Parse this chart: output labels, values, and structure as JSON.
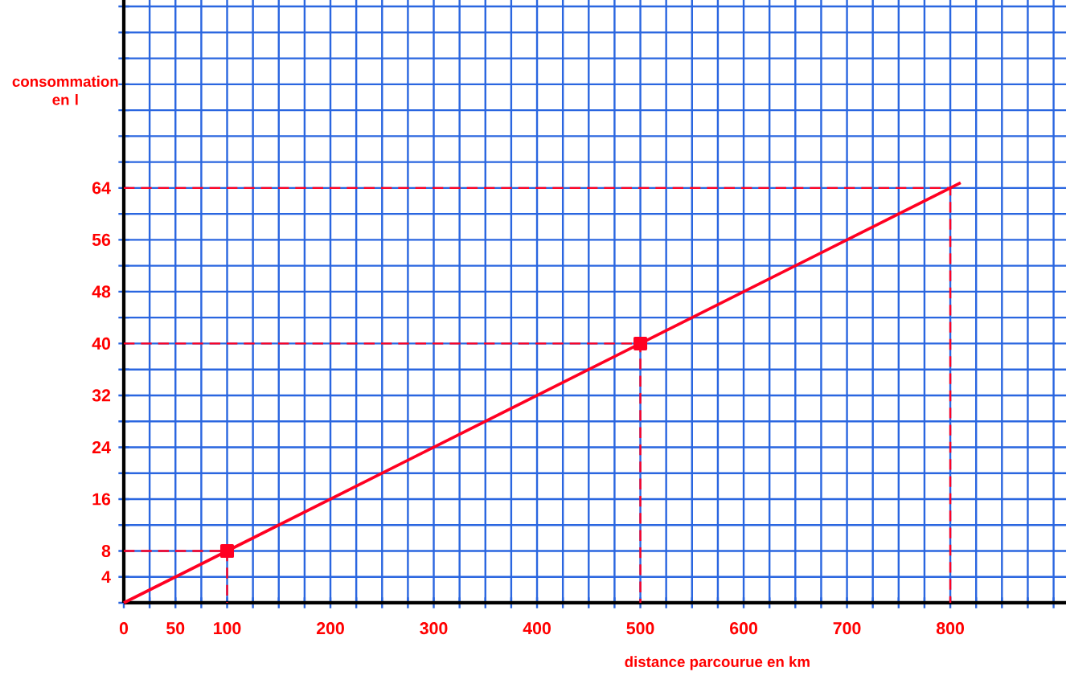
{
  "chart_data": {
    "type": "line",
    "xlabel": "distance parcourue en km",
    "ylabel": "consommation en l",
    "xlim": [
      0,
      912
    ],
    "ylim": [
      0,
      93
    ],
    "xticks": [
      0,
      50,
      100,
      {
        "value": 25,
        "label": null
      },
      {
        "value": 75,
        "label": null
      },
      {
        "value": 125,
        "label": null
      },
      {
        "value": 150,
        "label": null
      },
      {
        "value": 175,
        "label": null
      },
      200,
      {
        "value": 225,
        "label": null
      },
      {
        "value": 250,
        "label": null
      },
      {
        "value": 275,
        "label": null
      },
      300,
      {
        "value": 325,
        "label": null
      },
      {
        "value": 350,
        "label": null
      },
      {
        "value": 375,
        "label": null
      },
      400,
      {
        "value": 425,
        "label": null
      },
      {
        "value": 450,
        "label": null
      },
      {
        "value": 475,
        "label": null
      },
      500,
      {
        "value": 525,
        "label": null
      },
      {
        "value": 550,
        "label": null
      },
      {
        "value": 575,
        "label": null
      },
      600,
      {
        "value": 625,
        "label": null
      },
      {
        "value": 650,
        "label": null
      },
      {
        "value": 675,
        "label": null
      },
      700,
      {
        "value": 725,
        "label": null
      },
      {
        "value": 750,
        "label": null
      },
      {
        "value": 775,
        "label": null
      },
      800,
      {
        "value": 825,
        "label": null
      },
      {
        "value": 850,
        "label": null
      },
      {
        "value": 875,
        "label": null
      },
      {
        "value": 900,
        "label": null
      }
    ],
    "yticks": [
      4,
      8,
      16,
      24,
      32,
      40,
      48,
      56,
      64,
      {
        "value": 0,
        "label": null
      },
      {
        "value": 12,
        "label": null
      },
      {
        "value": 20,
        "label": null
      },
      {
        "value": 28,
        "label": null
      },
      {
        "value": 36,
        "label": null
      },
      {
        "value": 44,
        "label": null
      },
      {
        "value": 52,
        "label": null
      },
      {
        "value": 60,
        "label": null
      },
      {
        "value": 68,
        "label": null
      },
      {
        "value": 72,
        "label": null
      },
      {
        "value": 76,
        "label": null
      },
      {
        "value": 80,
        "label": null
      },
      {
        "value": 84,
        "label": null
      },
      {
        "value": 88,
        "label": null
      },
      {
        "value": 92,
        "label": null
      }
    ],
    "grid": true,
    "series": [
      {
        "color": "#ff0022",
        "x": [
          0,
          100,
          500,
          800,
          810
        ],
        "values": [
          0,
          8,
          40,
          64,
          64.8
        ]
      },
      {
        "type": "scatter",
        "color": "#ff0022",
        "marker": "square",
        "x": [
          100,
          500
        ],
        "values": [
          8,
          40
        ]
      },
      {
        "type": "line",
        "color": "#ff0022",
        "line_style": "dashed",
        "x": [
          0,
          100,
          100
        ],
        "values": [
          8,
          8,
          0
        ]
      },
      {
        "type": "line",
        "color": "#ff0022",
        "line_style": "dashed",
        "x": [
          0,
          500,
          500
        ],
        "values": [
          40,
          40,
          0
        ]
      },
      {
        "type": "line",
        "color": "#ff0022",
        "line_style": "dashed",
        "x": [
          0,
          800,
          800
        ],
        "values": [
          64,
          64,
          0
        ]
      }
    ]
  }
}
